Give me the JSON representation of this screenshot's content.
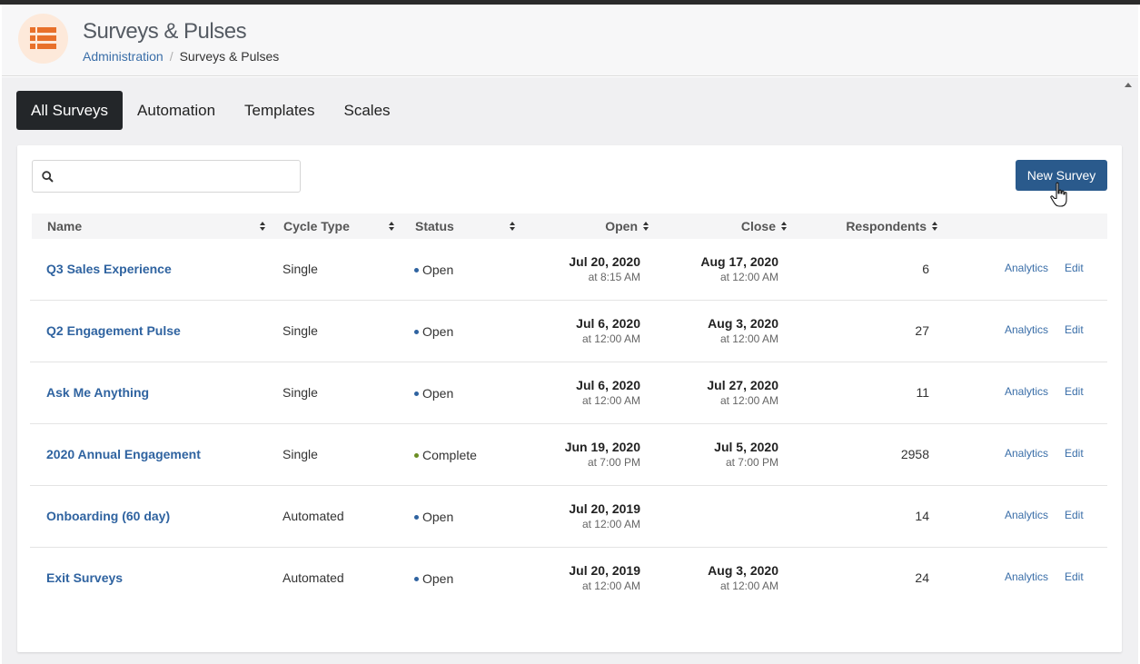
{
  "header": {
    "title": "Surveys & Pulses",
    "icon": "list-icon",
    "icon_color": "#e8702a",
    "breadcrumb": {
      "link": "Administration",
      "separator": "/",
      "current": "Surveys & Pulses"
    }
  },
  "tabs": [
    {
      "label": "All Surveys",
      "active": true
    },
    {
      "label": "Automation",
      "active": false
    },
    {
      "label": "Templates",
      "active": false
    },
    {
      "label": "Scales",
      "active": false
    }
  ],
  "search": {
    "value": "",
    "placeholder": ""
  },
  "new_survey_label": "New Survey",
  "columns": {
    "name": "Name",
    "cycle_type": "Cycle Type",
    "status": "Status",
    "open": "Open",
    "close": "Close",
    "respondents": "Respondents"
  },
  "status_colors": {
    "Open": "#2f63a0",
    "Complete": "#6b8e23"
  },
  "rows": [
    {
      "name": "Q3 Sales Experience",
      "cycle": "Single",
      "status": "Open",
      "open_date": "Jul 20, 2020",
      "open_time": "at 8:15 AM",
      "close_date": "Aug 17, 2020",
      "close_time": "at 12:00 AM",
      "respondents": "6",
      "analytics": "Analytics",
      "edit": "Edit"
    },
    {
      "name": "Q2 Engagement Pulse",
      "cycle": "Single",
      "status": "Open",
      "open_date": "Jul 6, 2020",
      "open_time": "at 12:00 AM",
      "close_date": "Aug 3, 2020",
      "close_time": "at 12:00 AM",
      "respondents": "27",
      "analytics": "Analytics",
      "edit": "Edit"
    },
    {
      "name": "Ask Me Anything",
      "cycle": "Single",
      "status": "Open",
      "open_date": "Jul 6, 2020",
      "open_time": "at 12:00 AM",
      "close_date": "Jul 27, 2020",
      "close_time": "at 12:00 AM",
      "respondents": "11",
      "analytics": "Analytics",
      "edit": "Edit"
    },
    {
      "name": "2020 Annual Engagement",
      "cycle": "Single",
      "status": "Complete",
      "open_date": "Jun 19, 2020",
      "open_time": "at 7:00 PM",
      "close_date": "Jul 5, 2020",
      "close_time": "at 7:00 PM",
      "respondents": "2958",
      "analytics": "Analytics",
      "edit": "Edit"
    },
    {
      "name": "Onboarding (60 day)",
      "cycle": "Automated",
      "status": "Open",
      "open_date": "Jul 20, 2019",
      "open_time": "at 12:00 AM",
      "close_date": "",
      "close_time": "",
      "respondents": "14",
      "analytics": "Analytics",
      "edit": "Edit"
    },
    {
      "name": "Exit Surveys",
      "cycle": "Automated",
      "status": "Open",
      "open_date": "Jul 20, 2019",
      "open_time": "at 12:00 AM",
      "close_date": "Aug 3, 2020",
      "close_time": "at 12:00 AM",
      "respondents": "24",
      "analytics": "Analytics",
      "edit": "Edit"
    }
  ]
}
